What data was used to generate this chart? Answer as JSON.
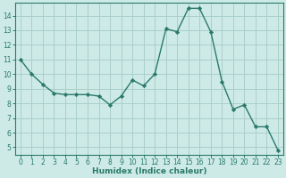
{
  "x": [
    0,
    1,
    2,
    3,
    4,
    5,
    6,
    7,
    8,
    9,
    10,
    11,
    12,
    13,
    14,
    15,
    16,
    17,
    18,
    19,
    20,
    21,
    22,
    23
  ],
  "y": [
    11,
    10,
    9.3,
    8.7,
    8.6,
    8.6,
    8.6,
    8.5,
    7.9,
    8.5,
    9.6,
    9.2,
    10.0,
    13.1,
    12.9,
    14.5,
    14.5,
    12.9,
    9.5,
    7.6,
    7.9,
    6.4,
    6.4,
    4.8
  ],
  "xlabel": "Humidex (Indice chaleur)",
  "xlim": [
    -0.5,
    23.5
  ],
  "ylim": [
    4.5,
    14.9
  ],
  "yticks": [
    5,
    6,
    7,
    8,
    9,
    10,
    11,
    12,
    13,
    14
  ],
  "xticks": [
    0,
    1,
    2,
    3,
    4,
    5,
    6,
    7,
    8,
    9,
    10,
    11,
    12,
    13,
    14,
    15,
    16,
    17,
    18,
    19,
    20,
    21,
    22,
    23
  ],
  "line_color": "#2a7a6b",
  "marker_color": "#2a7a6b",
  "bg_color": "#cdeae6",
  "grid_color": "#aacfcb",
  "axis_color": "#2a7a6b",
  "tick_color": "#2a7a6b",
  "xlabel_color": "#2a7a6b",
  "tick_fontsize": 5.5,
  "xlabel_fontsize": 6.5
}
